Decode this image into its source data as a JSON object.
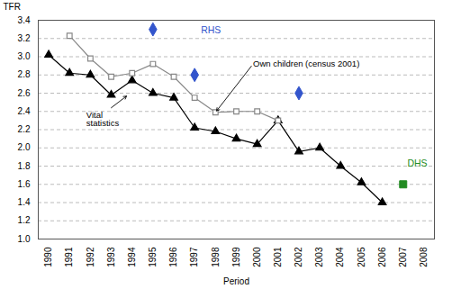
{
  "chart_data": {
    "type": "line",
    "xlabel": "Period",
    "ylabel": "TFR",
    "xlim": [
      1989.5,
      2008.5
    ],
    "ylim": [
      1.0,
      3.4
    ],
    "xticks": [
      1990,
      1991,
      1992,
      1993,
      1994,
      1995,
      1996,
      1997,
      1998,
      1999,
      2000,
      2001,
      2002,
      2003,
      2004,
      2005,
      2006,
      2007,
      2008
    ],
    "yticks": [
      {
        "value": 1.0,
        "label": "1.0"
      },
      1.2,
      1.4,
      1.6,
      1.8,
      {
        "value": 2.0,
        "label": "2.0"
      },
      2.2,
      2.4,
      2.6,
      2.8,
      {
        "value": 3.0,
        "label": "3.0"
      },
      3.2,
      3.4
    ],
    "grid": true,
    "series": [
      {
        "type": "line",
        "color": "#000000",
        "marker": "triangle",
        "line_style": "solid",
        "x": [
          1990,
          1991,
          1992,
          1993,
          1994,
          1995,
          1996,
          1997,
          1998,
          1999,
          2000,
          2001,
          2002,
          2003,
          2004,
          2005,
          2006
        ],
        "values": [
          3.02,
          2.82,
          2.8,
          2.58,
          2.74,
          2.6,
          2.55,
          2.22,
          2.18,
          2.1,
          2.04,
          2.3,
          1.96,
          2.0,
          1.8,
          1.62,
          1.4
        ]
      },
      {
        "type": "line",
        "color": "#888888",
        "marker": "open_square",
        "line_style": "solid",
        "x": [
          1991,
          1992,
          1993,
          1994,
          1995,
          1996,
          1997,
          1998,
          1999,
          2000,
          2001
        ],
        "values": [
          3.23,
          2.98,
          2.78,
          2.82,
          2.92,
          2.78,
          2.55,
          2.39,
          2.4,
          2.4,
          2.3
        ]
      },
      {
        "type": "scatter",
        "color": "#3355cc",
        "marker": "diamond",
        "x": [
          1995,
          1997,
          2002
        ],
        "values": [
          3.3,
          2.8,
          2.6
        ]
      },
      {
        "type": "scatter",
        "color": "#228B22",
        "marker": "square",
        "x": [
          2007
        ],
        "values": [
          1.6
        ]
      }
    ],
    "annotations": [
      {
        "text": "RHS",
        "x": 1997.3,
        "y": 3.26,
        "color": "#3355cc"
      },
      {
        "text": "DHS",
        "x": 2007.2,
        "y": 1.8,
        "color": "#228B22"
      },
      {
        "text": "Own children (census 2001)",
        "x": 1999.8,
        "y": 2.92,
        "color": "#000000",
        "arrow_to": [
          1998.0,
          2.39
        ]
      },
      {
        "text": "Vital\nstatistics",
        "x": 1991.8,
        "y": 2.4,
        "color": "#000000",
        "arrow_from": [
          1993.0,
          2.44
        ],
        "arrow_to": [
          1993.8,
          2.58
        ]
      }
    ]
  }
}
